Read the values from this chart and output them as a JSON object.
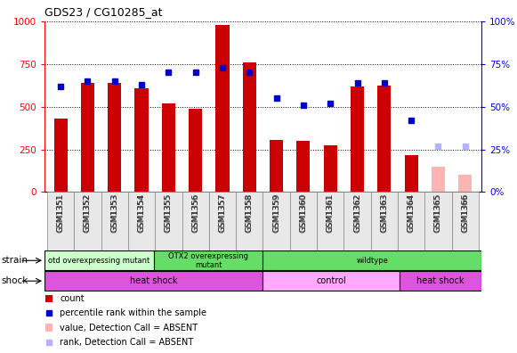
{
  "title": "GDS23 / CG10285_at",
  "samples": [
    "GSM1351",
    "GSM1352",
    "GSM1353",
    "GSM1354",
    "GSM1355",
    "GSM1356",
    "GSM1357",
    "GSM1358",
    "GSM1359",
    "GSM1360",
    "GSM1361",
    "GSM1362",
    "GSM1363",
    "GSM1364",
    "GSM1365",
    "GSM1366"
  ],
  "counts": [
    430,
    640,
    640,
    610,
    520,
    490,
    980,
    760,
    305,
    300,
    275,
    620,
    625,
    215,
    null,
    null
  ],
  "counts_absent": [
    null,
    null,
    null,
    null,
    null,
    null,
    null,
    null,
    null,
    null,
    null,
    null,
    null,
    null,
    150,
    100
  ],
  "percentile_ranks": [
    62,
    65,
    65,
    63,
    70,
    70,
    73,
    70,
    55,
    51,
    52,
    64,
    64,
    42,
    null,
    null
  ],
  "percentile_absent": [
    null,
    null,
    null,
    null,
    null,
    null,
    null,
    null,
    null,
    null,
    null,
    null,
    null,
    null,
    27,
    27
  ],
  "count_color": "#cc0000",
  "count_absent_color": "#ffb3b3",
  "rank_color": "#0000cc",
  "rank_absent_color": "#b3b3ff",
  "ylim_left": [
    0,
    1000
  ],
  "ylim_right": [
    0,
    100
  ],
  "yticks_left": [
    0,
    250,
    500,
    750,
    1000
  ],
  "yticks_right": [
    0,
    25,
    50,
    75,
    100
  ],
  "bg_color": "#ffffff",
  "bar_width": 0.5,
  "sg_data": [
    [
      0,
      4,
      "#ccffcc",
      "otd overexpressing mutant"
    ],
    [
      4,
      8,
      "#66dd66",
      "OTX2 overexpressing\nmutant"
    ],
    [
      8,
      16,
      "#66dd66",
      "wildtype"
    ]
  ],
  "shock_data": [
    [
      0,
      8,
      "#dd55dd",
      "heat shock"
    ],
    [
      8,
      13,
      "#ffaaff",
      "control"
    ],
    [
      13,
      16,
      "#dd55dd",
      "heat shock"
    ]
  ]
}
